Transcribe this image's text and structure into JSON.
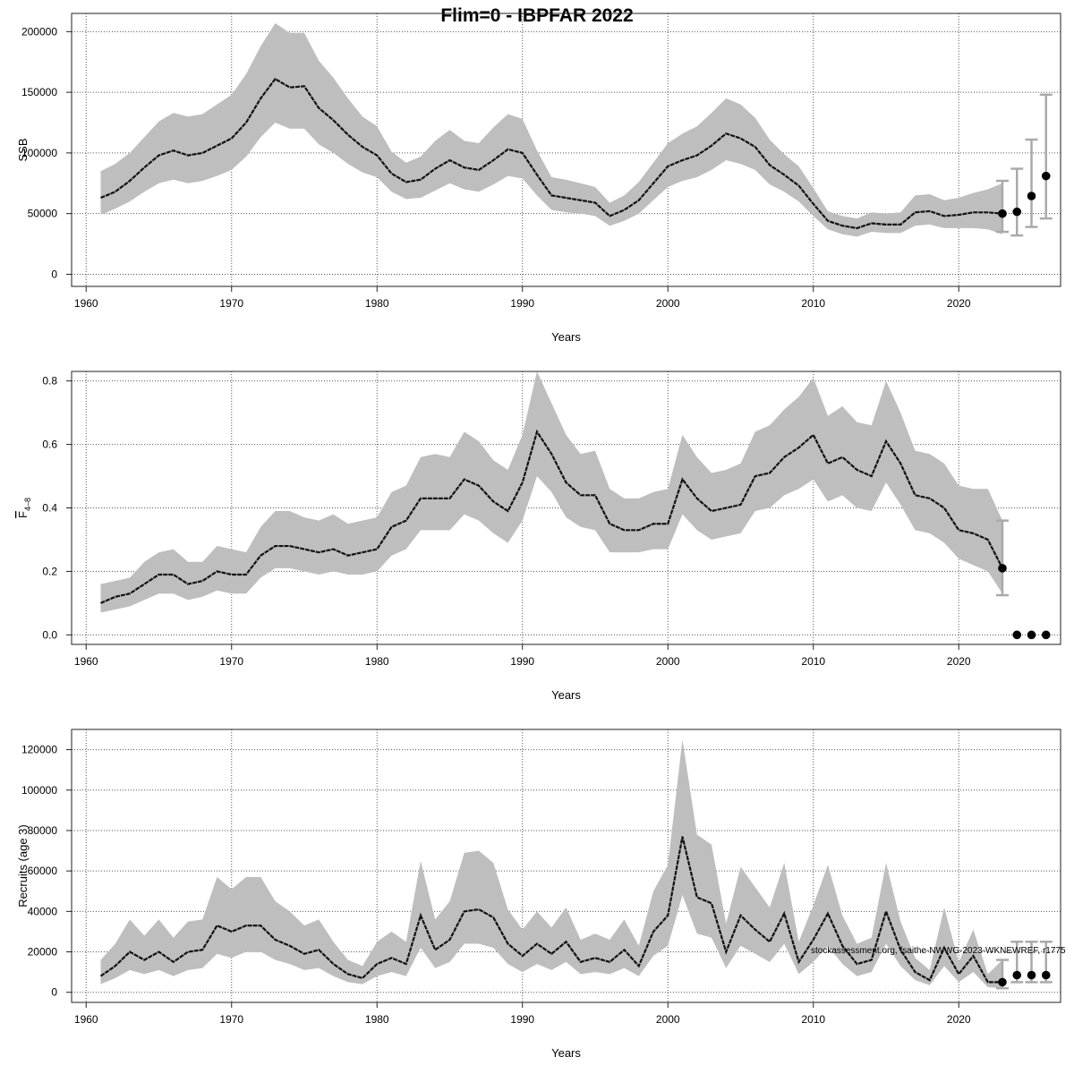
{
  "title": "Flim=0 - IBPFAR 2022",
  "watermark": "stockassessment.org, fsaithe-NWWG-2023-WKNEWREF, r1775",
  "chart_data": [
    {
      "type": "line",
      "ylabel": "SSB",
      "xlabel": "Years",
      "xlim": [
        1959,
        2027
      ],
      "ylim": [
        -10000,
        215000
      ],
      "xticks": [
        1960,
        1970,
        1980,
        1990,
        2000,
        2010,
        2020
      ],
      "yticks": [
        0,
        50000,
        100000,
        150000,
        200000
      ],
      "tick_labels": [
        "0",
        "50000",
        "100000",
        "150000",
        "200000"
      ],
      "x": [
        1961,
        1962,
        1963,
        1964,
        1965,
        1966,
        1967,
        1968,
        1969,
        1970,
        1971,
        1972,
        1973,
        1974,
        1975,
        1976,
        1977,
        1978,
        1979,
        1980,
        1981,
        1982,
        1983,
        1984,
        1985,
        1986,
        1987,
        1988,
        1989,
        1990,
        1991,
        1992,
        1993,
        1994,
        1995,
        1996,
        1997,
        1998,
        1999,
        2000,
        2001,
        2002,
        2003,
        2004,
        2005,
        2006,
        2007,
        2008,
        2009,
        2010,
        2011,
        2012,
        2013,
        2014,
        2015,
        2016,
        2017,
        2018,
        2019,
        2020,
        2021,
        2022,
        2023
      ],
      "estimate": [
        63000,
        68000,
        77000,
        88000,
        98000,
        102000,
        98000,
        100000,
        106000,
        112000,
        125000,
        145000,
        161000,
        154000,
        155000,
        137000,
        127000,
        115000,
        105000,
        98000,
        83000,
        76000,
        78000,
        87000,
        94000,
        88000,
        86000,
        94000,
        103000,
        100000,
        82000,
        65000,
        63000,
        61000,
        59000,
        48000,
        53000,
        61000,
        75000,
        89000,
        94000,
        98000,
        106000,
        116000,
        112000,
        105000,
        90000,
        82000,
        73000,
        58000,
        44000,
        40000,
        38000,
        42000,
        41000,
        41000,
        51000,
        52000,
        48000,
        49000,
        51000,
        51000,
        50000
      ],
      "lower": [
        49000,
        54000,
        60000,
        68000,
        75000,
        78000,
        75000,
        77000,
        81000,
        86000,
        97000,
        113000,
        125000,
        120000,
        120000,
        107000,
        100000,
        91000,
        84000,
        80000,
        68000,
        62000,
        63000,
        69000,
        75000,
        70000,
        68000,
        74000,
        81000,
        79000,
        65000,
        53000,
        51000,
        50000,
        48000,
        40000,
        44000,
        50000,
        61000,
        72000,
        77000,
        80000,
        86000,
        94000,
        91000,
        86000,
        74000,
        68000,
        60000,
        48000,
        37000,
        33000,
        31000,
        35000,
        34000,
        34000,
        40000,
        41000,
        38000,
        38000,
        38000,
        37000,
        33000
      ],
      "upper": [
        85000,
        91000,
        100000,
        113000,
        126000,
        133000,
        130000,
        132000,
        140000,
        148000,
        165000,
        188000,
        207000,
        199000,
        199000,
        176000,
        162000,
        145000,
        130000,
        122000,
        101000,
        92000,
        97000,
        110000,
        119000,
        110000,
        108000,
        121000,
        132000,
        128000,
        102000,
        80000,
        78000,
        75000,
        72000,
        59000,
        65000,
        76000,
        92000,
        108000,
        116000,
        122000,
        133000,
        145000,
        140000,
        129000,
        111000,
        99000,
        89000,
        71000,
        52000,
        48000,
        46000,
        51000,
        50000,
        51000,
        65000,
        66000,
        61000,
        63000,
        67000,
        70000,
        75000
      ],
      "forecast": [
        {
          "x": 2023,
          "y": 50000,
          "lower": 35000,
          "upper": 77000
        },
        {
          "x": 2024,
          "y": 51500,
          "lower": 32000,
          "upper": 87000
        },
        {
          "x": 2025,
          "y": 64500,
          "lower": 39000,
          "upper": 111000
        },
        {
          "x": 2026,
          "y": 81000,
          "lower": 46000,
          "upper": 148000
        }
      ]
    },
    {
      "type": "line",
      "ylabel": "F̄ 4-8",
      "ylabel_main": "F",
      "ylabel_sub": "4–8",
      "xlabel": "Years",
      "xlim": [
        1959,
        2027
      ],
      "ylim": [
        -0.03,
        0.83
      ],
      "xticks": [
        1960,
        1970,
        1980,
        1990,
        2000,
        2010,
        2020
      ],
      "yticks": [
        0.0,
        0.2,
        0.4,
        0.6,
        0.8
      ],
      "tick_labels": [
        "0.0",
        "0.2",
        "0.4",
        "0.6",
        "0.8"
      ],
      "x": [
        1961,
        1962,
        1963,
        1964,
        1965,
        1966,
        1967,
        1968,
        1969,
        1970,
        1971,
        1972,
        1973,
        1974,
        1975,
        1976,
        1977,
        1978,
        1979,
        1980,
        1981,
        1982,
        1983,
        1984,
        1985,
        1986,
        1987,
        1988,
        1989,
        1990,
        1991,
        1992,
        1993,
        1994,
        1995,
        1996,
        1997,
        1998,
        1999,
        2000,
        2001,
        2002,
        2003,
        2004,
        2005,
        2006,
        2007,
        2008,
        2009,
        2010,
        2011,
        2012,
        2013,
        2014,
        2015,
        2016,
        2017,
        2018,
        2019,
        2020,
        2021,
        2022,
        2023
      ],
      "estimate": [
        0.1,
        0.12,
        0.13,
        0.16,
        0.19,
        0.19,
        0.16,
        0.17,
        0.2,
        0.19,
        0.19,
        0.25,
        0.28,
        0.28,
        0.27,
        0.26,
        0.27,
        0.25,
        0.26,
        0.27,
        0.34,
        0.36,
        0.43,
        0.43,
        0.43,
        0.49,
        0.47,
        0.42,
        0.39,
        0.48,
        0.64,
        0.57,
        0.48,
        0.44,
        0.44,
        0.35,
        0.33,
        0.33,
        0.35,
        0.35,
        0.49,
        0.43,
        0.39,
        0.4,
        0.41,
        0.5,
        0.51,
        0.56,
        0.59,
        0.63,
        0.54,
        0.56,
        0.52,
        0.5,
        0.61,
        0.54,
        0.44,
        0.43,
        0.4,
        0.33,
        0.32,
        0.3,
        0.21
      ],
      "lower": [
        0.07,
        0.08,
        0.09,
        0.11,
        0.13,
        0.13,
        0.11,
        0.12,
        0.14,
        0.13,
        0.13,
        0.18,
        0.21,
        0.21,
        0.2,
        0.19,
        0.2,
        0.19,
        0.19,
        0.2,
        0.25,
        0.27,
        0.33,
        0.33,
        0.33,
        0.38,
        0.36,
        0.32,
        0.29,
        0.36,
        0.5,
        0.45,
        0.37,
        0.34,
        0.33,
        0.26,
        0.26,
        0.26,
        0.27,
        0.27,
        0.38,
        0.33,
        0.3,
        0.31,
        0.32,
        0.39,
        0.4,
        0.44,
        0.46,
        0.49,
        0.42,
        0.44,
        0.4,
        0.39,
        0.48,
        0.41,
        0.33,
        0.32,
        0.29,
        0.24,
        0.22,
        0.2,
        0.13
      ],
      "upper": [
        0.16,
        0.17,
        0.18,
        0.23,
        0.26,
        0.27,
        0.23,
        0.23,
        0.28,
        0.27,
        0.26,
        0.34,
        0.39,
        0.39,
        0.37,
        0.36,
        0.38,
        0.35,
        0.36,
        0.37,
        0.45,
        0.47,
        0.56,
        0.57,
        0.56,
        0.64,
        0.61,
        0.55,
        0.52,
        0.63,
        0.83,
        0.73,
        0.63,
        0.57,
        0.58,
        0.46,
        0.43,
        0.43,
        0.45,
        0.46,
        0.63,
        0.56,
        0.51,
        0.52,
        0.54,
        0.64,
        0.66,
        0.71,
        0.75,
        0.81,
        0.69,
        0.72,
        0.67,
        0.66,
        0.8,
        0.7,
        0.58,
        0.57,
        0.54,
        0.47,
        0.46,
        0.46,
        0.36
      ],
      "forecast": [
        {
          "x": 2023,
          "y": 0.21,
          "lower": 0.125,
          "upper": 0.36
        },
        {
          "x": 2024,
          "y": 0.0,
          "lower": 0.0,
          "upper": 0.0
        },
        {
          "x": 2025,
          "y": 0.0,
          "lower": 0.0,
          "upper": 0.0
        },
        {
          "x": 2026,
          "y": 0.0,
          "lower": 0.0,
          "upper": 0.0
        }
      ]
    },
    {
      "type": "line",
      "ylabel": "Recruits (age 3)",
      "xlabel": "Years",
      "xlim": [
        1959,
        2027
      ],
      "ylim": [
        -5000,
        130000
      ],
      "xticks": [
        1960,
        1970,
        1980,
        1990,
        2000,
        2010,
        2020
      ],
      "yticks": [
        0,
        20000,
        40000,
        60000,
        80000,
        100000,
        120000
      ],
      "tick_labels": [
        "0",
        "20000",
        "40000",
        "60000",
        "80000",
        "100000",
        "120000"
      ],
      "x": [
        1961,
        1962,
        1963,
        1964,
        1965,
        1966,
        1967,
        1968,
        1969,
        1970,
        1971,
        1972,
        1973,
        1974,
        1975,
        1976,
        1977,
        1978,
        1979,
        1980,
        1981,
        1982,
        1983,
        1984,
        1985,
        1986,
        1987,
        1988,
        1989,
        1990,
        1991,
        1992,
        1993,
        1994,
        1995,
        1996,
        1997,
        1998,
        1999,
        2000,
        2001,
        2002,
        2003,
        2004,
        2005,
        2006,
        2007,
        2008,
        2009,
        2010,
        2011,
        2012,
        2013,
        2014,
        2015,
        2016,
        2017,
        2018,
        2019,
        2020,
        2021,
        2022,
        2023
      ],
      "estimate": [
        8000,
        13000,
        20000,
        16000,
        20000,
        15000,
        20000,
        21000,
        33000,
        30000,
        33000,
        33000,
        26000,
        23000,
        19000,
        21000,
        14000,
        9000,
        7000,
        14000,
        17000,
        14000,
        38000,
        21000,
        26000,
        40000,
        41000,
        37000,
        24000,
        18000,
        24000,
        19000,
        25000,
        15000,
        17000,
        15000,
        21000,
        13000,
        30000,
        38000,
        77000,
        47000,
        44000,
        20000,
        38000,
        31000,
        25000,
        39000,
        15000,
        26000,
        39000,
        23000,
        14000,
        16000,
        40000,
        21000,
        10000,
        6000,
        22000,
        9000,
        18000,
        5000,
        5000
      ],
      "lower": [
        4000,
        7000,
        11000,
        9000,
        11000,
        8000,
        11000,
        12000,
        19000,
        17000,
        20000,
        20000,
        16000,
        14000,
        11000,
        12000,
        8000,
        5000,
        4000,
        8000,
        10000,
        8000,
        22000,
        12000,
        15000,
        24000,
        24000,
        22000,
        14000,
        10000,
        14000,
        11000,
        15000,
        9000,
        10000,
        9000,
        12000,
        8000,
        18000,
        23000,
        48000,
        29000,
        27000,
        12000,
        23000,
        19000,
        15000,
        24000,
        9000,
        15000,
        23000,
        14000,
        8000,
        10000,
        24000,
        13000,
        6000,
        3500,
        13000,
        5000,
        10000,
        2500,
        2000
      ],
      "upper": [
        16000,
        24000,
        36000,
        28000,
        36000,
        27000,
        35000,
        36000,
        57000,
        51000,
        57000,
        57000,
        45000,
        40000,
        33000,
        36000,
        25000,
        16000,
        13000,
        25000,
        30000,
        25000,
        65000,
        36000,
        45000,
        69000,
        70000,
        64000,
        41000,
        31000,
        40000,
        32000,
        42000,
        26000,
        29000,
        26000,
        36000,
        23000,
        50000,
        63000,
        125000,
        78000,
        73000,
        34000,
        62000,
        52000,
        42000,
        64000,
        25000,
        43000,
        63000,
        38000,
        24000,
        27000,
        64000,
        35000,
        17000,
        11000,
        42000,
        15000,
        31000,
        9000,
        16000
      ],
      "forecast": [
        {
          "x": 2023,
          "y": 5000,
          "lower": 2000,
          "upper": 16000
        },
        {
          "x": 2024,
          "y": 8500,
          "lower": 5000,
          "upper": 25000
        },
        {
          "x": 2025,
          "y": 8500,
          "lower": 5000,
          "upper": 25000
        },
        {
          "x": 2026,
          "y": 8500,
          "lower": 5000,
          "upper": 25000
        }
      ]
    }
  ]
}
